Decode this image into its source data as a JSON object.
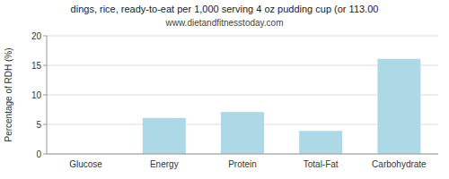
{
  "chart_data": {
    "type": "bar",
    "title": "dings, rice, ready-to-eat per 1,000 serving 4 oz pudding cup (or 113.00",
    "subtitle": "www.dietandfitnesstoday.com",
    "categories": [
      "Glucose",
      "Energy",
      "Protein",
      "Total-Fat",
      "Carbohydrate"
    ],
    "values": [
      0,
      6.1,
      7.1,
      3.9,
      16.1
    ],
    "color": "#add8e6",
    "y_label": "Percentage of RDH (%)",
    "ylim": [
      0,
      20
    ],
    "yticks": [
      0,
      5,
      10,
      15,
      20
    ],
    "grid": true
  }
}
